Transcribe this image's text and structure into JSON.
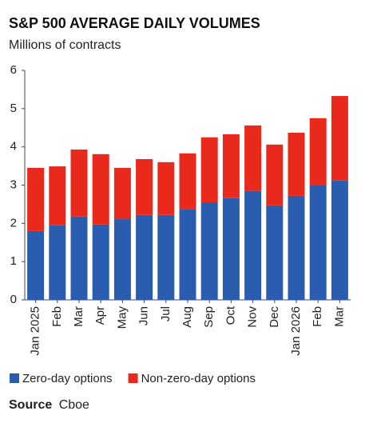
{
  "chart_data": {
    "type": "stacked_bar",
    "title": "S&P 500 AVERAGE DAILY VOLUMES",
    "subtitle": "Millions of contracts",
    "categories": [
      "Jan 2025",
      "Feb",
      "Mar",
      "Apr",
      "May",
      "Jun",
      "Jul",
      "Aug",
      "Sep",
      "Oct",
      "Nov",
      "Dec",
      "Jan 2026",
      "Feb",
      "Mar"
    ],
    "series": [
      {
        "name": "Zero-day options",
        "color": "#2a5db0",
        "values": [
          1.8,
          1.95,
          2.18,
          1.97,
          2.11,
          2.22,
          2.22,
          2.38,
          2.55,
          2.66,
          2.85,
          2.47,
          2.72,
          2.99,
          3.12
        ]
      },
      {
        "name": "Non-zero-day options",
        "color": "#e8291c",
        "values": [
          1.65,
          1.54,
          1.75,
          1.84,
          1.34,
          1.46,
          1.38,
          1.45,
          1.7,
          1.67,
          1.71,
          1.59,
          1.65,
          1.76,
          2.21
        ]
      }
    ],
    "ylim": [
      0,
      6
    ],
    "yticks": [
      0,
      1,
      2,
      3,
      4,
      5,
      6
    ],
    "source": {
      "label": "Source",
      "text": "Cboe"
    }
  }
}
